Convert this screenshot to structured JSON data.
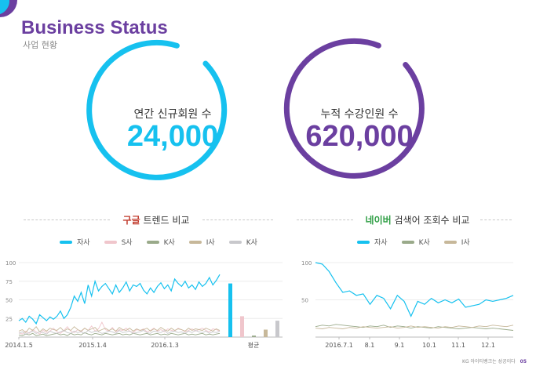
{
  "header": {
    "title": "Business Status",
    "subtitle": "사업 현황"
  },
  "colors": {
    "accent_purple": "#6b3fa0",
    "accent_cyan": "#16c1ef",
    "google_red": "#c0392b",
    "naver_green": "#2e9e44"
  },
  "stats": [
    {
      "label": "연간 신규회원 수",
      "value": "24,000",
      "color": "#16c1ef"
    },
    {
      "label": "누적 수강인원 수",
      "value": "620,000",
      "color": "#6b3fa0"
    }
  ],
  "sections": {
    "google": {
      "highlight": "구글",
      "rest": " 트렌드 비교"
    },
    "naver": {
      "highlight": "네이버",
      "rest": " 검색어 조회수 비교"
    }
  },
  "footer": {
    "text": "KG 아이티뱅크는 성공이다",
    "page": "05"
  },
  "chart_data": [
    {
      "type": "line",
      "yticks": [
        "100",
        "75",
        "50",
        "25"
      ],
      "ylim": [
        0,
        100
      ],
      "xticks": [
        "2014.1.5",
        "2015.1.4",
        "2016.1.3"
      ],
      "legend": [
        "자사",
        "S사",
        "K사",
        "I사",
        "K사"
      ],
      "series": [
        {
          "name": "자사",
          "color": "#16c1ef",
          "values": [
            22,
            25,
            20,
            28,
            24,
            18,
            30,
            26,
            22,
            27,
            24,
            28,
            35,
            25,
            30,
            40,
            55,
            48,
            60,
            45,
            70,
            55,
            75,
            62,
            68,
            72,
            65,
            58,
            70,
            60,
            66,
            74,
            62,
            70,
            68,
            72,
            63,
            58,
            66,
            60,
            68,
            73,
            65,
            70,
            62,
            78,
            72,
            68,
            75,
            66,
            70,
            64,
            74,
            68,
            72,
            80,
            70,
            76,
            84
          ]
        },
        {
          "name": "S사",
          "color": "#f0c6cc",
          "values": [
            6,
            4,
            8,
            5,
            10,
            7,
            4,
            9,
            6,
            8,
            12,
            7,
            5,
            9,
            14,
            8,
            6,
            10,
            7,
            12,
            9,
            15,
            8,
            11,
            20,
            10,
            8,
            13,
            7,
            10,
            9,
            12,
            8,
            6,
            10,
            9,
            11,
            7,
            9,
            12,
            8,
            10,
            7,
            11,
            9,
            8,
            12,
            10,
            7,
            9,
            11,
            8,
            10,
            12,
            9,
            7,
            11,
            10,
            8
          ]
        },
        {
          "name": "K사",
          "color": "#9aaa8a",
          "values": [
            3,
            2,
            4,
            3,
            5,
            2,
            3,
            4,
            2,
            3,
            4,
            5,
            3,
            4,
            2,
            5,
            3,
            4,
            3,
            6,
            4,
            3,
            5,
            4,
            3,
            5,
            4,
            3,
            4,
            5,
            3,
            4,
            3,
            5,
            4,
            3,
            4,
            5,
            3,
            4,
            5,
            3,
            4,
            3,
            5,
            4,
            3,
            4,
            5,
            3,
            4,
            3,
            4,
            5,
            3,
            4,
            3,
            4,
            5
          ]
        },
        {
          "name": "I사",
          "color": "#c7b89a",
          "values": [
            8,
            10,
            6,
            12,
            9,
            14,
            7,
            11,
            8,
            12,
            10,
            9,
            13,
            8,
            11,
            9,
            14,
            10,
            8,
            12,
            9,
            11,
            13,
            8,
            10,
            12,
            9,
            11,
            8,
            13,
            10,
            9,
            12,
            8,
            11,
            9,
            10,
            12,
            8,
            11,
            9,
            13,
            10,
            8,
            12,
            9,
            11,
            10,
            8,
            12,
            9,
            11,
            10,
            9,
            12,
            10,
            8,
            11,
            9
          ]
        },
        {
          "name": "K사",
          "color": "#c8c8cc",
          "values": [
            5,
            7,
            4,
            6,
            8,
            5,
            7,
            6,
            4,
            8,
            6,
            5,
            7,
            9,
            6,
            5,
            8,
            6,
            7,
            5,
            9,
            6,
            8,
            7,
            5,
            6,
            8,
            7,
            5,
            9,
            6,
            7,
            8,
            5,
            6,
            7,
            9,
            6,
            5,
            8,
            7,
            6,
            9,
            5,
            7,
            8,
            6,
            7,
            5,
            8,
            6,
            9,
            7,
            6,
            8,
            5,
            7,
            6,
            8
          ]
        }
      ],
      "average": {
        "label": "평균",
        "values": [
          72,
          28,
          2,
          10,
          22
        ],
        "colors": [
          "#16c1ef",
          "#f0c6cc",
          "#9aaa8a",
          "#c7b89a",
          "#c8c8cc"
        ]
      }
    },
    {
      "type": "line",
      "yticks": [
        "100",
        "50"
      ],
      "ylim": [
        0,
        100
      ],
      "xticks": [
        "2016.7.1",
        "8.1",
        "9.1",
        "10.1",
        "11.1",
        "12.1"
      ],
      "legend": [
        "자사",
        "K사",
        "I사"
      ],
      "series": [
        {
          "name": "자사",
          "color": "#16c1ef",
          "values": [
            100,
            98,
            88,
            73,
            60,
            62,
            56,
            58,
            44,
            56,
            52,
            38,
            56,
            48,
            28,
            48,
            44,
            52,
            46,
            50,
            46,
            51,
            40,
            42,
            44,
            50,
            48,
            50,
            52,
            56
          ]
        },
        {
          "name": "K사",
          "color": "#9aaa8a",
          "values": [
            14,
            16,
            15,
            17,
            16,
            15,
            14,
            13,
            15,
            14,
            16,
            13,
            15,
            14,
            12,
            14,
            13,
            12,
            14,
            13,
            12,
            11,
            12,
            13,
            12,
            11,
            12,
            11,
            10,
            9
          ]
        },
        {
          "name": "I사",
          "color": "#c7b89a",
          "values": [
            12,
            11,
            13,
            12,
            11,
            13,
            12,
            14,
            13,
            12,
            13,
            14,
            12,
            13,
            15,
            13,
            14,
            13,
            12,
            14,
            13,
            15,
            14,
            13,
            15,
            14,
            16,
            15,
            14,
            16
          ]
        }
      ]
    }
  ]
}
